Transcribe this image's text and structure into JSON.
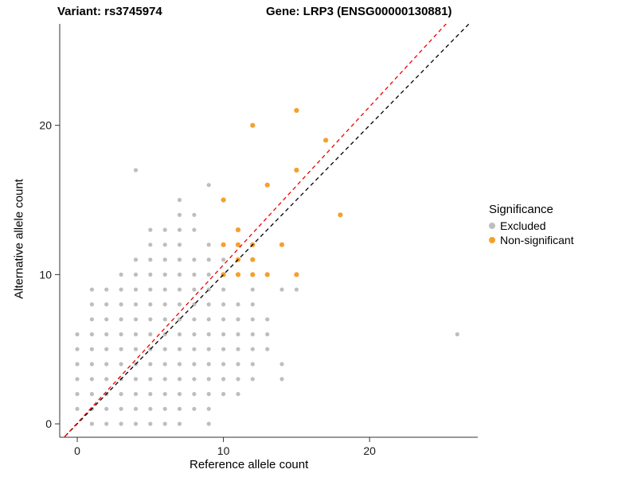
{
  "titles": {
    "left": "Variant: rs3745974",
    "right": "Gene: LRP3 (ENSG00000130881)"
  },
  "axes": {
    "x_label": "Reference allele count",
    "y_label": "Alternative allele count",
    "x_ticks": [
      0,
      10,
      20
    ],
    "y_ticks": [
      0,
      10,
      20
    ]
  },
  "legend": {
    "title": "Significance",
    "items": [
      {
        "label": "Excluded",
        "color": "#BEBEBE"
      },
      {
        "label": "Non-significant",
        "color": "#F5A02D"
      }
    ]
  },
  "chart_data": {
    "type": "scatter",
    "title": "Variant: rs3745974 / Gene: LRP3 (ENSG00000130881)",
    "xlabel": "Reference allele count",
    "ylabel": "Alternative allele count",
    "xlim": [
      -1.2,
      27.4
    ],
    "ylim": [
      -0.9,
      26.8
    ],
    "grid": false,
    "legend_position": "right",
    "series": [
      {
        "name": "Excluded",
        "color": "#BEBEBE",
        "radius": 2.6,
        "points": [
          [
            1,
            0
          ],
          [
            2,
            0
          ],
          [
            3,
            0
          ],
          [
            4,
            0
          ],
          [
            5,
            0
          ],
          [
            6,
            0
          ],
          [
            7,
            0
          ],
          [
            9,
            0
          ],
          [
            0,
            1
          ],
          [
            1,
            1
          ],
          [
            2,
            1
          ],
          [
            3,
            1
          ],
          [
            4,
            1
          ],
          [
            5,
            1
          ],
          [
            6,
            1
          ],
          [
            7,
            1
          ],
          [
            8,
            1
          ],
          [
            9,
            1
          ],
          [
            0,
            2
          ],
          [
            1,
            2
          ],
          [
            2,
            2
          ],
          [
            3,
            2
          ],
          [
            4,
            2
          ],
          [
            5,
            2
          ],
          [
            6,
            2
          ],
          [
            7,
            2
          ],
          [
            8,
            2
          ],
          [
            9,
            2
          ],
          [
            10,
            2
          ],
          [
            11,
            2
          ],
          [
            0,
            3
          ],
          [
            1,
            3
          ],
          [
            2,
            3
          ],
          [
            3,
            3
          ],
          [
            4,
            3
          ],
          [
            5,
            3
          ],
          [
            6,
            3
          ],
          [
            7,
            3
          ],
          [
            8,
            3
          ],
          [
            9,
            3
          ],
          [
            10,
            3
          ],
          [
            11,
            3
          ],
          [
            12,
            3
          ],
          [
            14,
            3
          ],
          [
            0,
            4
          ],
          [
            1,
            4
          ],
          [
            2,
            4
          ],
          [
            3,
            4
          ],
          [
            4,
            4
          ],
          [
            5,
            4
          ],
          [
            6,
            4
          ],
          [
            7,
            4
          ],
          [
            8,
            4
          ],
          [
            9,
            4
          ],
          [
            10,
            4
          ],
          [
            11,
            4
          ],
          [
            12,
            4
          ],
          [
            14,
            4
          ],
          [
            0,
            5
          ],
          [
            1,
            5
          ],
          [
            2,
            5
          ],
          [
            3,
            5
          ],
          [
            4,
            5
          ],
          [
            5,
            5
          ],
          [
            6,
            5
          ],
          [
            7,
            5
          ],
          [
            8,
            5
          ],
          [
            9,
            5
          ],
          [
            10,
            5
          ],
          [
            11,
            5
          ],
          [
            12,
            5
          ],
          [
            13,
            5
          ],
          [
            0,
            6
          ],
          [
            1,
            6
          ],
          [
            2,
            6
          ],
          [
            3,
            6
          ],
          [
            4,
            6
          ],
          [
            5,
            6
          ],
          [
            6,
            6
          ],
          [
            7,
            6
          ],
          [
            8,
            6
          ],
          [
            9,
            6
          ],
          [
            10,
            6
          ],
          [
            11,
            6
          ],
          [
            12,
            6
          ],
          [
            13,
            6
          ],
          [
            26,
            6
          ],
          [
            1,
            7
          ],
          [
            2,
            7
          ],
          [
            3,
            7
          ],
          [
            4,
            7
          ],
          [
            5,
            7
          ],
          [
            6,
            7
          ],
          [
            7,
            7
          ],
          [
            8,
            7
          ],
          [
            9,
            7
          ],
          [
            10,
            7
          ],
          [
            11,
            7
          ],
          [
            12,
            7
          ],
          [
            13,
            7
          ],
          [
            1,
            8
          ],
          [
            2,
            8
          ],
          [
            3,
            8
          ],
          [
            4,
            8
          ],
          [
            5,
            8
          ],
          [
            6,
            8
          ],
          [
            7,
            8
          ],
          [
            8,
            8
          ],
          [
            9,
            8
          ],
          [
            10,
            8
          ],
          [
            11,
            8
          ],
          [
            12,
            8
          ],
          [
            1,
            9
          ],
          [
            2,
            9
          ],
          [
            3,
            9
          ],
          [
            4,
            9
          ],
          [
            5,
            9
          ],
          [
            6,
            9
          ],
          [
            7,
            9
          ],
          [
            8,
            9
          ],
          [
            9,
            9
          ],
          [
            10,
            9
          ],
          [
            12,
            9
          ],
          [
            14,
            9
          ],
          [
            15,
            9
          ],
          [
            3,
            10
          ],
          [
            4,
            10
          ],
          [
            5,
            10
          ],
          [
            6,
            10
          ],
          [
            7,
            10
          ],
          [
            8,
            10
          ],
          [
            9,
            10
          ],
          [
            4,
            11
          ],
          [
            5,
            11
          ],
          [
            6,
            11
          ],
          [
            7,
            11
          ],
          [
            8,
            11
          ],
          [
            9,
            11
          ],
          [
            10,
            11
          ],
          [
            5,
            12
          ],
          [
            6,
            12
          ],
          [
            7,
            12
          ],
          [
            9,
            12
          ],
          [
            5,
            13
          ],
          [
            6,
            13
          ],
          [
            7,
            13
          ],
          [
            8,
            13
          ],
          [
            7,
            14
          ],
          [
            8,
            14
          ],
          [
            7,
            15
          ],
          [
            9,
            16
          ],
          [
            4,
            17
          ]
        ]
      },
      {
        "name": "Non-significant",
        "color": "#F5A02D",
        "radius": 3.1,
        "points": [
          [
            10,
            10
          ],
          [
            11,
            10
          ],
          [
            12,
            10
          ],
          [
            13,
            10
          ],
          [
            15,
            10
          ],
          [
            11,
            11
          ],
          [
            12,
            11
          ],
          [
            10,
            12
          ],
          [
            11,
            12
          ],
          [
            12,
            12
          ],
          [
            14,
            12
          ],
          [
            11,
            13
          ],
          [
            18,
            14
          ],
          [
            10,
            15
          ],
          [
            13,
            16
          ],
          [
            15,
            17
          ],
          [
            17,
            19
          ],
          [
            12,
            20
          ],
          [
            15,
            21
          ]
        ]
      }
    ],
    "lines": [
      {
        "name": "identity",
        "slope": 1.0,
        "intercept": 0.0,
        "color": "#000000",
        "dashed": true
      },
      {
        "name": "fit",
        "slope": 1.06,
        "intercept": 0.05,
        "color": "#EE0000",
        "dashed": true
      }
    ]
  }
}
